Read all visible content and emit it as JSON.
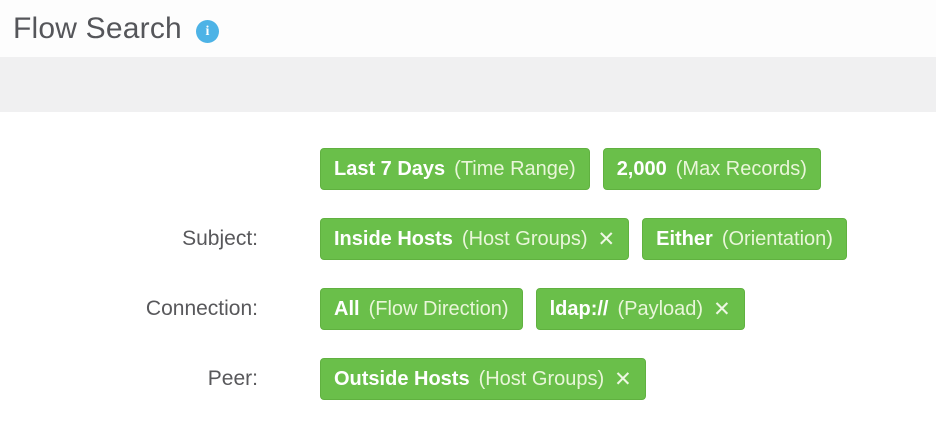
{
  "header": {
    "title": "Flow Search",
    "info_glyph": "i"
  },
  "close_glyph": "✕",
  "colors": {
    "tag_green": "#6abf4a",
    "tag_border_green": "#60b140",
    "info_blue": "#4db3e6",
    "band_gray": "#f0f0f1",
    "title_gray": "#55565a",
    "label_gray": "#58585b",
    "tag_value_text": "#ffffff",
    "tag_category_text": "#e9f6d9"
  },
  "rows": [
    {
      "label": "",
      "tags": [
        {
          "value": "Last 7 Days",
          "category": "(Time Range)",
          "removable": false
        },
        {
          "value": "2,000",
          "category": "(Max Records)",
          "removable": false
        }
      ]
    },
    {
      "label": "Subject:",
      "tags": [
        {
          "value": "Inside Hosts",
          "category": "(Host Groups)",
          "removable": true
        },
        {
          "value": "Either",
          "category": "(Orientation)",
          "removable": false
        }
      ]
    },
    {
      "label": "Connection:",
      "tags": [
        {
          "value": "All",
          "category": "(Flow Direction)",
          "removable": false
        },
        {
          "value": "ldap://",
          "category": "(Payload)",
          "removable": true
        }
      ]
    },
    {
      "label": "Peer:",
      "tags": [
        {
          "value": "Outside Hosts",
          "category": "(Host Groups)",
          "removable": true
        }
      ]
    }
  ]
}
